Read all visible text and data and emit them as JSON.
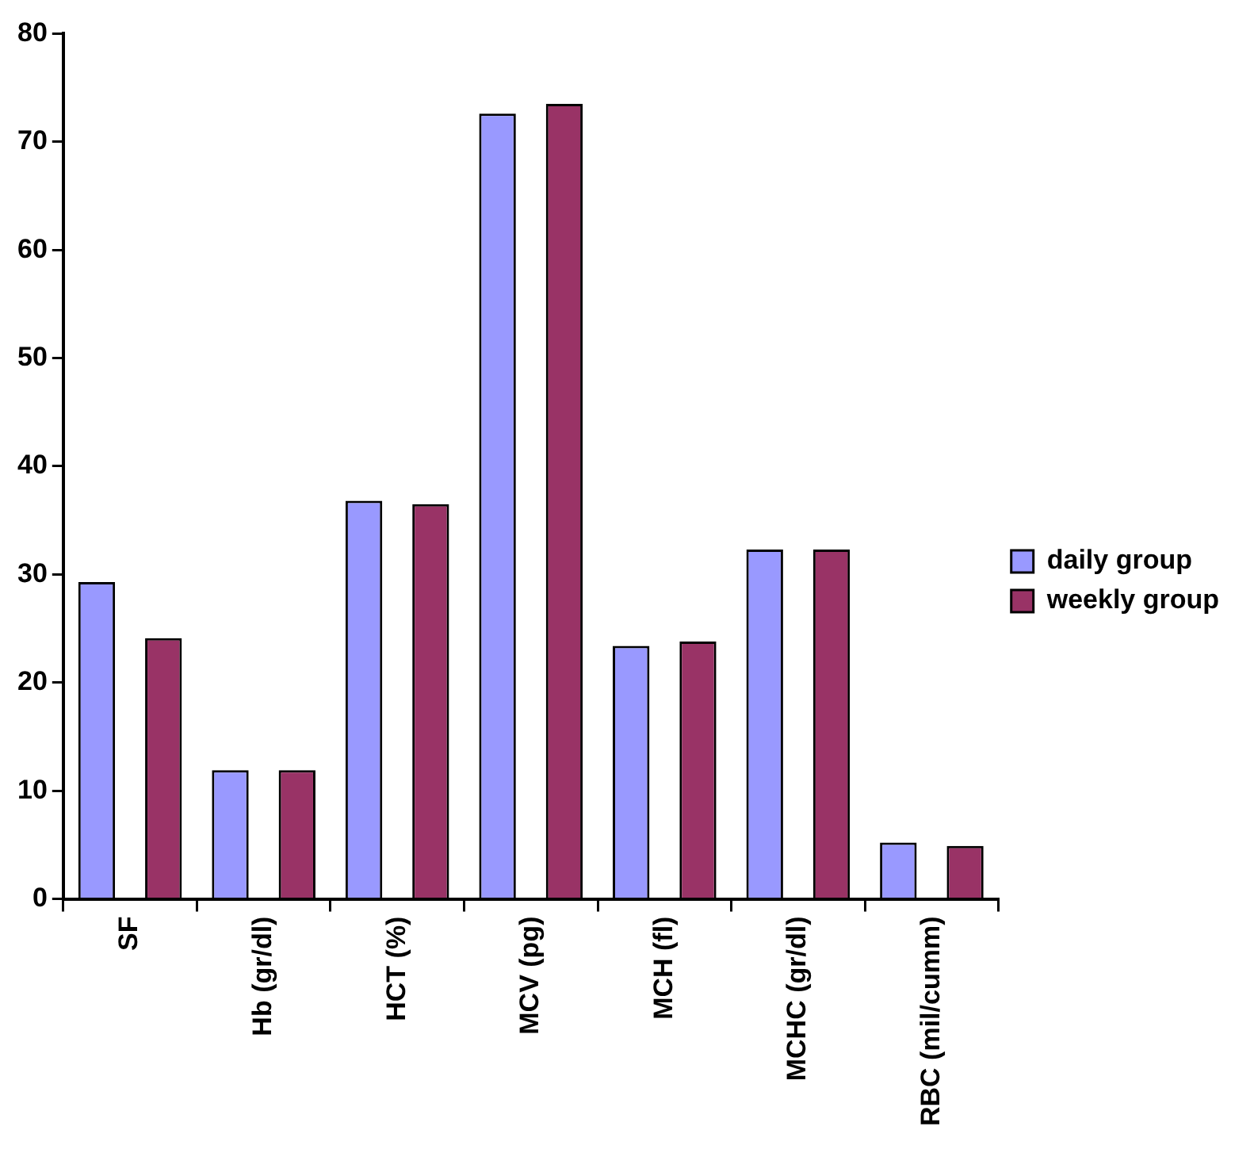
{
  "chart_data": {
    "type": "bar",
    "categories": [
      "SF",
      "Hb (gr/dl)",
      "HCT (%)",
      "MCV (pg)",
      "MCH (fl)",
      "MCHC (gr/dl)",
      "RBC (mil/cumm)"
    ],
    "series": [
      {
        "name": "daily group",
        "color": "#9999ff",
        "values": [
          29.3,
          11.9,
          36.8,
          72.6,
          23.4,
          32.3,
          5.2
        ]
      },
      {
        "name": "weekly group",
        "color": "#993366",
        "values": [
          24.1,
          11.9,
          36.5,
          73.5,
          23.8,
          32.3,
          4.9
        ]
      }
    ],
    "ylim": [
      0,
      80
    ],
    "yticks": [
      0,
      10,
      20,
      30,
      40,
      50,
      60,
      70,
      80
    ],
    "grid": false,
    "legend": "right"
  }
}
